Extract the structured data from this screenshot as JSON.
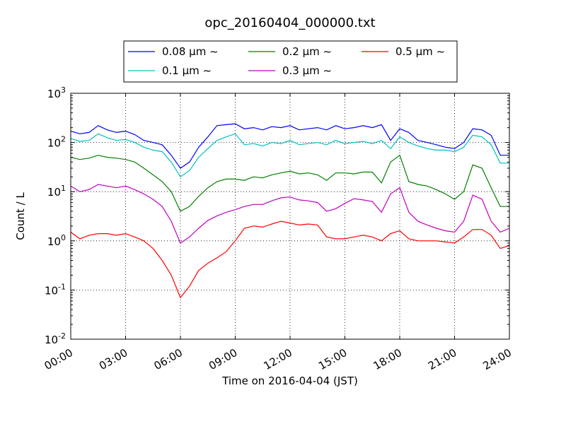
{
  "chart_data": {
    "type": "line",
    "title": "opc_20160404_000000.txt",
    "xlabel": "Time on 2016-04-04 (JST)",
    "ylabel": "Count / L",
    "y_scale": "log",
    "ylim": [
      0.01,
      1000
    ],
    "xlim": [
      "00:00",
      "24:00"
    ],
    "grid": true,
    "grid_style": "dotted",
    "legend_position": "top-center, outside plot",
    "legend_columns": 3,
    "x_tick_labels": [
      "00:00",
      "03:00",
      "06:00",
      "09:00",
      "12:00",
      "15:00",
      "18:00",
      "21:00",
      "24:00"
    ],
    "y_tick_labels": [
      {
        "base": "10",
        "exp": "-2"
      },
      {
        "base": "10",
        "exp": "-1"
      },
      {
        "base": "10",
        "exp": "0"
      },
      {
        "base": "10",
        "exp": "1"
      },
      {
        "base": "10",
        "exp": "2"
      },
      {
        "base": "10",
        "exp": "3"
      }
    ],
    "x_hours": [
      0,
      0.5,
      1,
      1.5,
      2,
      2.5,
      3,
      3.5,
      4,
      4.5,
      5,
      5.5,
      6,
      6.5,
      7,
      7.5,
      8,
      8.5,
      9,
      9.5,
      10,
      10.5,
      11,
      11.5,
      12,
      12.5,
      13,
      13.5,
      14,
      14.5,
      15,
      15.5,
      16,
      16.5,
      17,
      17.5,
      18,
      18.5,
      19,
      19.5,
      20,
      20.5,
      21,
      21.5,
      22,
      22.5,
      23,
      23.5,
      24
    ],
    "series": [
      {
        "name": "0.08 μm ~",
        "color": "#0000ff",
        "values": [
          170,
          150,
          160,
          220,
          180,
          160,
          170,
          145,
          110,
          100,
          90,
          55,
          30,
          40,
          80,
          130,
          220,
          230,
          240,
          190,
          200,
          180,
          210,
          200,
          220,
          180,
          190,
          200,
          180,
          220,
          190,
          200,
          220,
          200,
          230,
          110,
          190,
          160,
          110,
          100,
          90,
          80,
          75,
          100,
          190,
          180,
          140,
          55,
          55
        ]
      },
      {
        "name": "0.1 μm ~",
        "color": "#00c0c0",
        "values": [
          120,
          105,
          110,
          150,
          125,
          110,
          115,
          100,
          80,
          70,
          65,
          40,
          20,
          27,
          50,
          75,
          110,
          130,
          150,
          90,
          95,
          85,
          100,
          95,
          110,
          90,
          95,
          100,
          90,
          110,
          95,
          100,
          105,
          95,
          110,
          75,
          130,
          100,
          85,
          75,
          70,
          70,
          65,
          80,
          140,
          130,
          90,
          38,
          38
        ]
      },
      {
        "name": "0.2 μm ~",
        "color": "#008000",
        "values": [
          50,
          45,
          48,
          55,
          50,
          48,
          45,
          40,
          30,
          22,
          16,
          10,
          4,
          5,
          8,
          12,
          16,
          18,
          18,
          17,
          20,
          19,
          22,
          24,
          26,
          23,
          24,
          22,
          17,
          24,
          24,
          23,
          25,
          25,
          15,
          40,
          55,
          16,
          14,
          13,
          11,
          9,
          7,
          10,
          35,
          30,
          12,
          5,
          5
        ]
      },
      {
        "name": "0.3 μm ~",
        "color": "#c000c0",
        "values": [
          13,
          10,
          11,
          14,
          13,
          12,
          13,
          11,
          9,
          7,
          5,
          2.5,
          0.9,
          1.2,
          1.8,
          2.6,
          3.2,
          3.8,
          4.3,
          5,
          5.5,
          5.5,
          6.5,
          7.5,
          7.8,
          6.8,
          6.5,
          6,
          4,
          4.5,
          5.8,
          7.2,
          6.8,
          6.3,
          3.8,
          9,
          12,
          3.8,
          2.5,
          2.1,
          1.8,
          1.6,
          1.5,
          2.5,
          8.5,
          7,
          2.5,
          1.5,
          1.8
        ]
      },
      {
        "name": "0.5 μm ~",
        "color": "#ff0000",
        "values": [
          1.5,
          1.1,
          1.3,
          1.4,
          1.4,
          1.3,
          1.4,
          1.2,
          1,
          0.7,
          0.4,
          0.2,
          0.07,
          0.12,
          0.25,
          0.35,
          0.45,
          0.6,
          1,
          1.8,
          2,
          1.9,
          2.2,
          2.5,
          2.3,
          2.1,
          2.2,
          2.1,
          1.2,
          1.1,
          1.1,
          1.2,
          1.3,
          1.2,
          1,
          1.4,
          1.6,
          1.1,
          1,
          1,
          1,
          0.95,
          0.9,
          1.2,
          1.7,
          1.7,
          1.3,
          0.7,
          0.8
        ]
      }
    ]
  }
}
